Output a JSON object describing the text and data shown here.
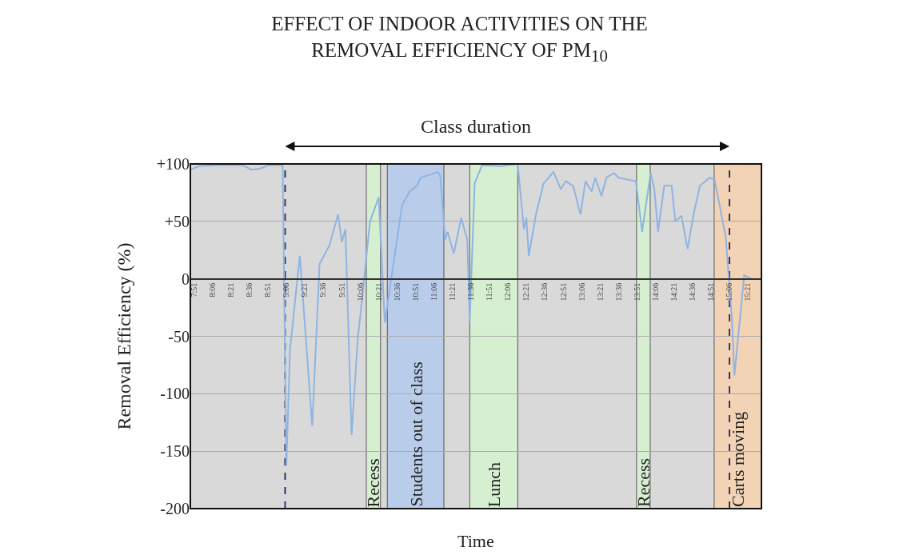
{
  "chart_data": {
    "type": "line",
    "title": "EFFECT OF INDOOR ACTIVITIES ON THE REMOVAL EFFICIENCY OF PM$_{10}$",
    "xlabel": "Time",
    "ylabel": "Removal Efficiency (%)",
    "annotations": [
      "Class duration"
    ],
    "x": [
      7.8,
      7.917,
      8.167,
      8.5,
      8.633,
      8.75,
      8.867,
      9.05,
      9.1,
      9.15,
      9.283,
      9.45,
      9.55,
      9.683,
      9.8,
      9.85,
      9.9,
      9.983,
      10.067,
      10.1,
      10.233,
      10.35,
      10.433,
      10.55,
      10.667,
      10.767,
      10.867,
      10.917,
      11.15,
      11.183,
      11.25,
      11.283,
      11.367,
      11.467,
      11.55,
      11.583,
      11.65,
      11.75,
      12,
      12.233,
      12.317,
      12.35,
      12.383,
      12.483,
      12.583,
      12.717,
      12.817,
      12.883,
      12.983,
      13.083,
      13.15,
      13.233,
      13.283,
      13.367,
      13.433,
      13.533,
      13.6,
      13.75,
      13.833,
      13.917,
      14.033,
      14.083,
      14.133,
      14.217,
      14.317,
      14.367,
      14.45,
      14.533,
      14.617,
      14.7,
      14.833,
      14.9,
      15.05,
      15.133,
      15.167,
      15.3,
      15.4
    ],
    "series": [
      {
        "color": "#8fb4e3",
        "values": [
          95,
          98,
          99,
          99,
          95,
          96,
          99,
          99,
          -163,
          -61,
          20,
          -128,
          13,
          29,
          56,
          32,
          43,
          -136,
          -52,
          -33,
          50,
          71,
          -38,
          13,
          64,
          76,
          81,
          88,
          93,
          90,
          34,
          41,
          22,
          53,
          34,
          -38,
          83,
          99,
          98,
          100,
          43,
          53,
          20,
          57,
          83,
          93,
          78,
          85,
          81,
          56,
          85,
          76,
          88,
          72,
          88,
          92,
          88,
          86,
          85,
          41,
          92,
          78,
          41,
          81,
          81,
          50,
          55,
          26,
          57,
          81,
          88,
          86,
          36,
          -35,
          -84,
          3,
          0
        ]
      }
    ],
    "xlim": [
      7.8,
      15.533
    ],
    "ylim": [
      -200,
      100
    ],
    "xticks": [
      {
        "value": 7.85,
        "label": "7:51"
      },
      {
        "value": 8.1,
        "label": "8:06"
      },
      {
        "value": 8.35,
        "label": "8:21"
      },
      {
        "value": 8.6,
        "label": "8:36"
      },
      {
        "value": 8.85,
        "label": "8:51"
      },
      {
        "value": 9.1,
        "label": "9:06"
      },
      {
        "value": 9.35,
        "label": "9:21"
      },
      {
        "value": 9.6,
        "label": "9:36"
      },
      {
        "value": 9.85,
        "label": "9:51"
      },
      {
        "value": 10.1,
        "label": "10:06"
      },
      {
        "value": 10.35,
        "label": "10:21"
      },
      {
        "value": 10.6,
        "label": "10:36"
      },
      {
        "value": 10.85,
        "label": "10:51"
      },
      {
        "value": 11.1,
        "label": "11:06"
      },
      {
        "value": 11.35,
        "label": "11:21"
      },
      {
        "value": 11.6,
        "label": "11:36"
      },
      {
        "value": 11.85,
        "label": "11:51"
      },
      {
        "value": 12.1,
        "label": "12:06"
      },
      {
        "value": 12.35,
        "label": "12:21"
      },
      {
        "value": 12.6,
        "label": "12:36"
      },
      {
        "value": 12.85,
        "label": "12:51"
      },
      {
        "value": 13.1,
        "label": "13:06"
      },
      {
        "value": 13.35,
        "label": "13:21"
      },
      {
        "value": 13.6,
        "label": "13:36"
      },
      {
        "value": 13.85,
        "label": "13:51"
      },
      {
        "value": 14.1,
        "label": "14:06"
      },
      {
        "value": 14.35,
        "label": "14:21"
      },
      {
        "value": 14.6,
        "label": "14:36"
      },
      {
        "value": 14.85,
        "label": "14:51"
      },
      {
        "value": 15.1,
        "label": "15:06"
      },
      {
        "value": 15.35,
        "label": "15:21"
      }
    ],
    "yticks": [
      {
        "value": 100,
        "label": "+100"
      },
      {
        "value": 50,
        "label": "+50"
      },
      0,
      -50,
      -100,
      -150,
      -200
    ],
    "bands": [
      {
        "axis": "x",
        "from": 10.183,
        "to": 10.375,
        "label": "Recess",
        "color": "#d5efd0"
      },
      {
        "axis": "x",
        "from": 10.467,
        "to": 11.233,
        "label": "Students out of class",
        "color": "#b9cdea"
      },
      {
        "axis": "x",
        "from": 11.583,
        "to": 12.233,
        "label": "Lunch",
        "color": "#d5efd0"
      },
      {
        "axis": "x",
        "from": 13.842,
        "to": 14.027,
        "label": "Recess",
        "color": "#d5efd0"
      },
      {
        "axis": "x",
        "from": 14.893,
        "to": 15.533,
        "label": "Carts moving",
        "color": "#f3d3b5"
      }
    ],
    "ref_lines": [
      {
        "axis": "x",
        "value": 9.083,
        "color": "#333366",
        "line_style": "dashed"
      },
      {
        "axis": "x",
        "value": 15.1,
        "color": "#333366",
        "line_style": "dashed"
      }
    ],
    "grid": "y",
    "legend": false,
    "marker": "none",
    "line_style": "solid"
  }
}
